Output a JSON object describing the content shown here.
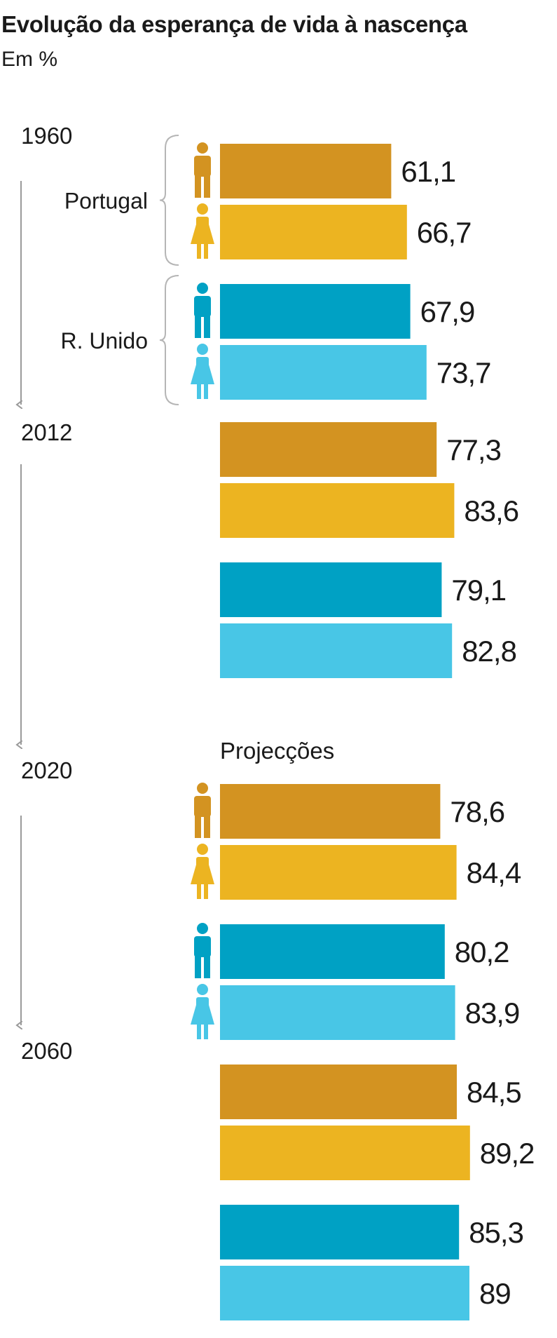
{
  "title": "Evolução da esperança de vida à nascença",
  "subtitle": "Em %",
  "colors": {
    "portugal_male": "#D39321",
    "portugal_female": "#ECB421",
    "uk_male": "#00A1C4",
    "uk_female": "#48C6E6",
    "arrow": "#9a9a9a",
    "bracket": "#b5b5b5"
  },
  "icons": [
    "male-icon",
    "female-icon"
  ],
  "chart_data": {
    "type": "bar",
    "orientation": "horizontal",
    "title": "Evolução da esperança de vida à nascença",
    "subtitle": "Em %",
    "years": [
      "1960",
      "2012",
      "2020",
      "2060"
    ],
    "country_labels": [
      "Portugal",
      "R. Unido"
    ],
    "projection_label": "Projecções",
    "xlim": [
      0,
      89.2
    ],
    "value_labels": {
      "1960": [
        "61,1",
        "66,7",
        "67,9",
        "73,7"
      ],
      "2012": [
        "77,3",
        "83,6",
        "79,1",
        "82,8"
      ],
      "2020": [
        "78,6",
        "84,4",
        "80,2",
        "83,9"
      ],
      "2060": [
        "84,5",
        "89,2",
        "85,3",
        "89"
      ]
    },
    "series": [
      {
        "key": "portugal_male",
        "values": [
          61.1,
          77.3,
          78.6,
          84.5
        ]
      },
      {
        "key": "portugal_female",
        "values": [
          66.7,
          83.6,
          84.4,
          89.2
        ]
      },
      {
        "key": "uk_male",
        "values": [
          67.9,
          79.1,
          80.2,
          85.3
        ]
      },
      {
        "key": "uk_female",
        "values": [
          73.7,
          82.8,
          83.9,
          89.0
        ]
      }
    ],
    "grid": false,
    "legend": "icons-left"
  }
}
